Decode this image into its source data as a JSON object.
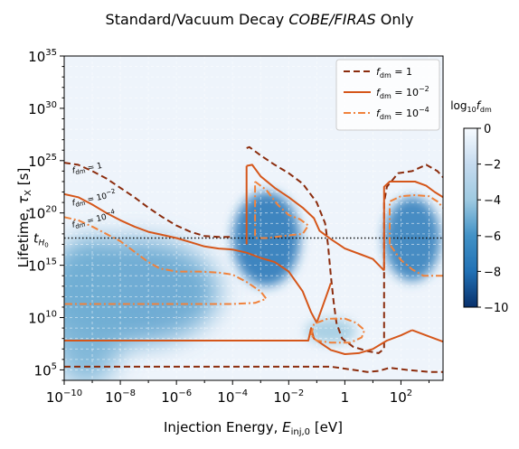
{
  "chart_data": {
    "type": "heatmap",
    "title_parts": [
      "Standard/Vacuum Decay ",
      "COBE/FIRAS",
      " Only"
    ],
    "xlabel_parts": [
      "Injection Energy, ",
      "E",
      "inj,0",
      " [eV]"
    ],
    "ylabel_parts": [
      "Lifetime,  ",
      "τ",
      "X",
      "  [s]"
    ],
    "x_scale": "log",
    "y_scale": "log",
    "xlim_log10": [
      -10,
      3.5
    ],
    "ylim_log10": [
      4,
      35
    ],
    "xticks": [
      {
        "base": "10",
        "exp": "−10",
        "log": -10
      },
      {
        "base": "10",
        "exp": "−8",
        "log": -8
      },
      {
        "base": "10",
        "exp": "−6",
        "log": -6
      },
      {
        "base": "10",
        "exp": "−4",
        "log": -4
      },
      {
        "base": "10",
        "exp": "−2",
        "log": -2
      },
      {
        "base": "1",
        "exp": "",
        "log": 0
      },
      {
        "base": "10",
        "exp": "2",
        "log": 2
      }
    ],
    "yticks": [
      {
        "base": "10",
        "exp": "5",
        "log": 5
      },
      {
        "base": "10",
        "exp": "10",
        "log": 10
      },
      {
        "base": "10",
        "exp": "15",
        "log": 15
      },
      {
        "base": "10",
        "exp": "20",
        "log": 20
      },
      {
        "base": "10",
        "exp": "25",
        "log": 25
      },
      {
        "base": "10",
        "exp": "30",
        "log": 30
      },
      {
        "base": "10",
        "exp": "35",
        "log": 35
      }
    ],
    "hubble_time": {
      "label": "t",
      "sub": "H",
      "subsub": "0",
      "y_log10": 17.6
    },
    "grid": true,
    "legend_position": "top-right",
    "colorbar": {
      "label_prefix": "log",
      "label_sub": "10",
      "label_var": "f",
      "label_var_sub": "dm",
      "range": [
        -10,
        0
      ],
      "ticks": [
        {
          "value": 0,
          "label": "0"
        },
        {
          "value": -2,
          "label": "−2"
        },
        {
          "value": -4,
          "label": "−4"
        },
        {
          "value": -6,
          "label": "−6"
        },
        {
          "value": -8,
          "label": "−8"
        },
        {
          "value": -10,
          "label": "−10"
        }
      ]
    },
    "series": [
      {
        "label_var": "f",
        "label_sub": "dm",
        "label_eq": " = 1",
        "label_exp": "",
        "color": "#8b2c0d",
        "dash": "7,4",
        "width": 2,
        "contour_label": {
          "x": -9.7,
          "y": 23.8,
          "rot": -10
        },
        "polylines": [
          [
            [
              -10,
              24.8
            ],
            [
              -9.5,
              24.6
            ],
            [
              -9,
              24
            ],
            [
              -8.5,
              23.3
            ],
            [
              -8,
              22.4
            ],
            [
              -7.5,
              21.5
            ],
            [
              -7,
              20.5
            ],
            [
              -6.5,
              19.6
            ],
            [
              -6,
              18.8
            ],
            [
              -5.5,
              18.2
            ],
            [
              -5,
              17.8
            ],
            [
              -4.5,
              17.7
            ],
            [
              -4,
              17.7
            ]
          ],
          [
            [
              -3.5,
              26.2
            ],
            [
              -3.4,
              26.3
            ],
            [
              -3,
              25.5
            ],
            [
              -2.5,
              24.6
            ],
            [
              -2,
              23.8
            ],
            [
              -1.5,
              22.8
            ],
            [
              -1,
              21
            ],
            [
              -0.7,
              19
            ],
            [
              -0.6,
              17
            ],
            [
              -0.5,
              14
            ],
            [
              -0.4,
              11.5
            ],
            [
              -0.3,
              9.5
            ],
            [
              -0.1,
              8
            ],
            [
              0.3,
              7.2
            ],
            [
              0.8,
              6.8
            ],
            [
              1.2,
              6.6
            ],
            [
              1.4,
              7
            ],
            [
              1.4,
              14
            ],
            [
              1.4,
              21
            ],
            [
              1.5,
              22.5
            ],
            [
              1.9,
              23.8
            ],
            [
              2.4,
              24
            ],
            [
              2.9,
              24.6
            ],
            [
              3.3,
              24
            ],
            [
              3.5,
              23.4
            ]
          ],
          [
            [
              -10,
              5.3
            ],
            [
              -8,
              5.3
            ],
            [
              -6,
              5.3
            ],
            [
              -4,
              5.3
            ],
            [
              -2,
              5.3
            ],
            [
              -0.5,
              5.3
            ],
            [
              0.3,
              5.0
            ],
            [
              0.8,
              4.8
            ],
            [
              1.2,
              4.9
            ],
            [
              1.6,
              5.2
            ],
            [
              2.2,
              5.0
            ],
            [
              3,
              4.8
            ],
            [
              3.5,
              4.8
            ]
          ]
        ]
      },
      {
        "label_var": "f",
        "label_sub": "dm",
        "label_eq": " = 10",
        "label_exp": "−2",
        "color": "#d5561a",
        "dash": "",
        "width": 2,
        "contour_label": {
          "x": -9.7,
          "y": 20.7,
          "rot": -12
        },
        "polylines": [
          [
            [
              -10,
              21.8
            ],
            [
              -9.5,
              21.5
            ],
            [
              -9,
              20.8
            ],
            [
              -8.5,
              20
            ],
            [
              -8,
              19.3
            ],
            [
              -7.5,
              18.7
            ],
            [
              -7,
              18.2
            ],
            [
              -6.5,
              17.9
            ],
            [
              -6,
              17.6
            ],
            [
              -5.5,
              17.2
            ],
            [
              -5,
              16.8
            ],
            [
              -4.5,
              16.6
            ],
            [
              -4,
              16.5
            ],
            [
              -3.5,
              16.2
            ],
            [
              -3,
              15.7
            ],
            [
              -2.5,
              15.3
            ],
            [
              -2,
              14.4
            ],
            [
              -1.5,
              12.5
            ],
            [
              -1.2,
              10.5
            ],
            [
              -1.0,
              9.5
            ],
            [
              -0.8,
              11
            ],
            [
              -0.6,
              12.5
            ],
            [
              -0.5,
              13.3
            ]
          ],
          [
            [
              -3.5,
              24.5
            ],
            [
              -3.3,
              24.6
            ],
            [
              -3,
              23.5
            ],
            [
              -2.5,
              22.4
            ],
            [
              -2,
              21.5
            ],
            [
              -1.5,
              20.5
            ],
            [
              -1.1,
              19.5
            ],
            [
              -0.9,
              18.3
            ],
            [
              -0.5,
              17.5
            ],
            [
              0,
              16.6
            ],
            [
              0.6,
              16
            ],
            [
              1,
              15.6
            ],
            [
              1.4,
              14.5
            ]
          ],
          [
            [
              -3.5,
              17
            ],
            [
              -3.5,
              24.5
            ]
          ],
          [
            [
              1.4,
              14.5
            ],
            [
              1.4,
              22.5
            ],
            [
              1.6,
              23
            ],
            [
              2,
              23
            ],
            [
              2.5,
              23
            ],
            [
              2.9,
              22.6
            ],
            [
              3.2,
              22
            ],
            [
              3.5,
              21.5
            ]
          ],
          [
            [
              -10,
              7.8
            ],
            [
              -6,
              7.8
            ],
            [
              -2,
              7.8
            ],
            [
              -1.3,
              7.8
            ],
            [
              -1.2,
              9
            ],
            [
              -1.1,
              8
            ],
            [
              -0.5,
              6.9
            ],
            [
              0,
              6.5
            ],
            [
              0.5,
              6.6
            ],
            [
              1.0,
              7.0
            ],
            [
              1.5,
              7.8
            ],
            [
              2,
              8.3
            ],
            [
              2.4,
              8.8
            ]
          ],
          [
            [
              2.4,
              8.8
            ],
            [
              3,
              8.2
            ],
            [
              3.5,
              7.7
            ]
          ]
        ]
      },
      {
        "label_var": "f",
        "label_sub": "dm",
        "label_eq": " = 10",
        "label_exp": "−4",
        "color": "#f0823c",
        "dash": "8,3,2,3",
        "width": 2,
        "contour_label": {
          "x": -9.7,
          "y": 18.6,
          "rot": -14
        },
        "polylines": [
          [
            [
              -10,
              19.6
            ],
            [
              -9.5,
              19.3
            ],
            [
              -9,
              18.7
            ],
            [
              -8.5,
              18
            ],
            [
              -8,
              17.3
            ],
            [
              -7.5,
              16.3
            ],
            [
              -7,
              15.3
            ],
            [
              -6.6,
              14.7
            ],
            [
              -6,
              14.4
            ],
            [
              -5.2,
              14.4
            ],
            [
              -4.5,
              14.3
            ],
            [
              -4,
              14.1
            ],
            [
              -3.5,
              13.4
            ],
            [
              -3,
              12.5
            ],
            [
              -2.8,
              11.8
            ],
            [
              -3.2,
              11.4
            ],
            [
              -4,
              11.3
            ],
            [
              -6,
              11.3
            ],
            [
              -8,
              11.3
            ],
            [
              -10,
              11.3
            ]
          ],
          [
            [
              -3.2,
              23
            ],
            [
              -2.8,
              22.2
            ],
            [
              -2.4,
              20.8
            ],
            [
              -2,
              19.8
            ],
            [
              -1.6,
              19.4
            ],
            [
              -1.3,
              18.8
            ],
            [
              -1.5,
              18
            ],
            [
              -2.2,
              17.8
            ],
            [
              -2.8,
              17.6
            ],
            [
              -3.2,
              17.6
            ],
            [
              -3.2,
              23
            ]
          ],
          [
            [
              1.6,
              17
            ],
            [
              1.6,
              21.1
            ],
            [
              2,
              21.6
            ],
            [
              2.5,
              21.7
            ],
            [
              3,
              21.6
            ],
            [
              3.3,
              21.1
            ],
            [
              3.5,
              20.5
            ]
          ],
          [
            [
              3.5,
              14
            ],
            [
              3.2,
              14
            ],
            [
              2.8,
              14
            ],
            [
              2.4,
              14.6
            ],
            [
              2,
              15.5
            ],
            [
              1.6,
              17
            ]
          ],
          [
            [
              -1.2,
              8.3
            ],
            [
              -1.1,
              9.4
            ],
            [
              -0.6,
              9.9
            ],
            [
              0,
              9.9
            ],
            [
              0.4,
              9.5
            ],
            [
              0.7,
              8.8
            ],
            [
              0.6,
              8.1
            ],
            [
              0.2,
              7.6
            ],
            [
              -0.5,
              7.6
            ],
            [
              -1.0,
              7.8
            ],
            [
              -1.2,
              8.3
            ]
          ],
          [
            [
              -3.3,
              12.7
            ],
            [
              -3.3,
              12.7
            ]
          ]
        ]
      }
    ],
    "heat_regions": [
      {
        "kind": "ellipse",
        "cx": -7.5,
        "cy": 12.5,
        "rx": 3.0,
        "ry": 5.0,
        "value": -5.5
      },
      {
        "kind": "ellipse",
        "cx": -9.2,
        "cy": 10.5,
        "rx": 1.4,
        "ry": 7.0,
        "value": -5.0
      },
      {
        "kind": "ellipse",
        "cx": -2.8,
        "cy": 17.5,
        "rx": 1.2,
        "ry": 4.5,
        "value": -8.0
      },
      {
        "kind": "ellipse",
        "cx": 2.4,
        "cy": 17.5,
        "rx": 1.0,
        "ry": 4.0,
        "value": -7.5
      },
      {
        "kind": "ellipse",
        "cx": -0.5,
        "cy": 8.7,
        "rx": 0.9,
        "ry": 1.2,
        "value": -4.0
      }
    ]
  }
}
